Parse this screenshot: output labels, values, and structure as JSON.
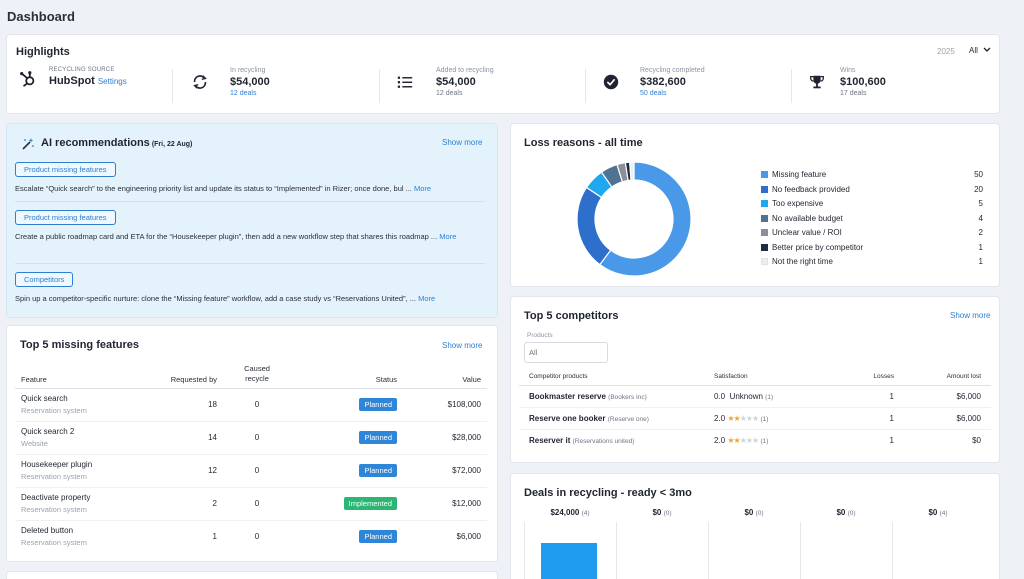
{
  "page": {
    "title": "Dashboard"
  },
  "highlights": {
    "title": "Highlights",
    "year": "2025",
    "filter": "All",
    "source": {
      "label": "RECYCLING SOURCE",
      "name": "HubSpot",
      "settings": "Settings"
    },
    "metrics": [
      {
        "label": "In recycling",
        "value": "$54,000",
        "sub": "12 deals",
        "icon": "recycle-icon"
      },
      {
        "label": "Added to recycling",
        "value": "$54,000",
        "sub": "12 deals",
        "icon": "list-icon"
      },
      {
        "label": "Recycling completed",
        "value": "$382,600",
        "sub": "50 deals",
        "icon": "check-circle-icon"
      },
      {
        "label": "Wins",
        "value": "$100,600",
        "sub": "17 deals",
        "icon": "trophy-icon"
      }
    ]
  },
  "ai": {
    "title": "AI recommendations",
    "date": "(Fri, 22 Aug)",
    "show_more": "Show more",
    "recommendations": [
      {
        "tag": "Product missing features",
        "text": "Escalate “Quick search” to the engineering priority list and update its status to “Implemented” in Rizer; once done, bul ...",
        "more": "More"
      },
      {
        "tag": "Product missing features",
        "text": "Create a public roadmap card and ETA for the “Housekeeper plugin”, then add a new workflow step that shares this roadmap ...",
        "more": "More"
      },
      {
        "tag": "Competitors",
        "text": "Spin up a competitor-specific nurture: clone the “Missing feature” workflow, add a case study vs “Reservations United”, ...",
        "more": "More"
      }
    ]
  },
  "features": {
    "title": "Top 5 missing features",
    "show_more": "Show more",
    "headers": {
      "feature": "Feature",
      "requested": "Requested by",
      "caused": "Caused recycle",
      "status": "Status",
      "value": "Value"
    },
    "rows": [
      {
        "name": "Quick search",
        "category": "Reservation system",
        "requested": "18",
        "caused": "0",
        "status": "Planned",
        "value": "$108,000"
      },
      {
        "name": "Quick search 2",
        "category": "Website",
        "requested": "14",
        "caused": "0",
        "status": "Planned",
        "value": "$28,000"
      },
      {
        "name": "Housekeeper plugin",
        "category": "Reservation system",
        "requested": "12",
        "caused": "0",
        "status": "Planned",
        "value": "$72,000"
      },
      {
        "name": "Deactivate property",
        "category": "Reservation system",
        "requested": "2",
        "caused": "0",
        "status": "Implemented",
        "value": "$12,000"
      },
      {
        "name": "Deleted button",
        "category": "Reservation system",
        "requested": "1",
        "caused": "0",
        "status": "Planned",
        "value": "$6,000"
      }
    ]
  },
  "loss": {
    "title": "Loss reasons - all time",
    "reasons": [
      {
        "label": "Missing feature",
        "count": "50",
        "value": 50,
        "color": "#4a98e8"
      },
      {
        "label": "No feedback provided",
        "count": "20",
        "value": 20,
        "color": "#2e6fcb"
      },
      {
        "label": "Too expensive",
        "count": "5",
        "value": 5,
        "color": "#1fa7f0"
      },
      {
        "label": "No available budget",
        "count": "4",
        "value": 4,
        "color": "#4f7390"
      },
      {
        "label": "Unclear value / ROI",
        "count": "2",
        "value": 2,
        "color": "#8a909a"
      },
      {
        "label": "Better price by competitor",
        "count": "1",
        "value": 1,
        "color": "#1f2a44"
      },
      {
        "label": "Not the right time",
        "count": "1",
        "value": 1,
        "color": "#eceef2"
      }
    ]
  },
  "competitors": {
    "title": "Top 5 competitors",
    "show_more": "Show more",
    "products_label": "Products",
    "products_placeholder": "All",
    "headers": {
      "product": "Competitor products",
      "satisfaction": "Satisfaction",
      "losses": "Losses",
      "amount": "Amount lost"
    },
    "rows": [
      {
        "name": "Bookmaster reserve",
        "org": "(Bookers Inc)",
        "score": "0.0",
        "unknown": "Unknown",
        "reviews": "(1)",
        "stars": 0,
        "losses": "1",
        "amount": "$6,000"
      },
      {
        "name": "Reserve one booker",
        "org": "(Reserve one)",
        "score": "2.0",
        "unknown": "",
        "reviews": "(1)",
        "stars": 2,
        "losses": "1",
        "amount": "$6,000"
      },
      {
        "name": "Reserver it",
        "org": "(Reservations united)",
        "score": "2.0",
        "unknown": "",
        "reviews": "(1)",
        "stars": 2,
        "losses": "1",
        "amount": "$0"
      }
    ]
  },
  "deals": {
    "title": "Deals in recycling - ready < 3mo",
    "columns": [
      {
        "amount": "$24,000",
        "count": "(4)",
        "value": 24000
      },
      {
        "amount": "$0",
        "count": "(0)",
        "value": 0
      },
      {
        "amount": "$0",
        "count": "(0)",
        "value": 0
      },
      {
        "amount": "$0",
        "count": "(0)",
        "value": 0
      },
      {
        "amount": "$0",
        "count": "(4)",
        "value": 0
      }
    ]
  }
}
